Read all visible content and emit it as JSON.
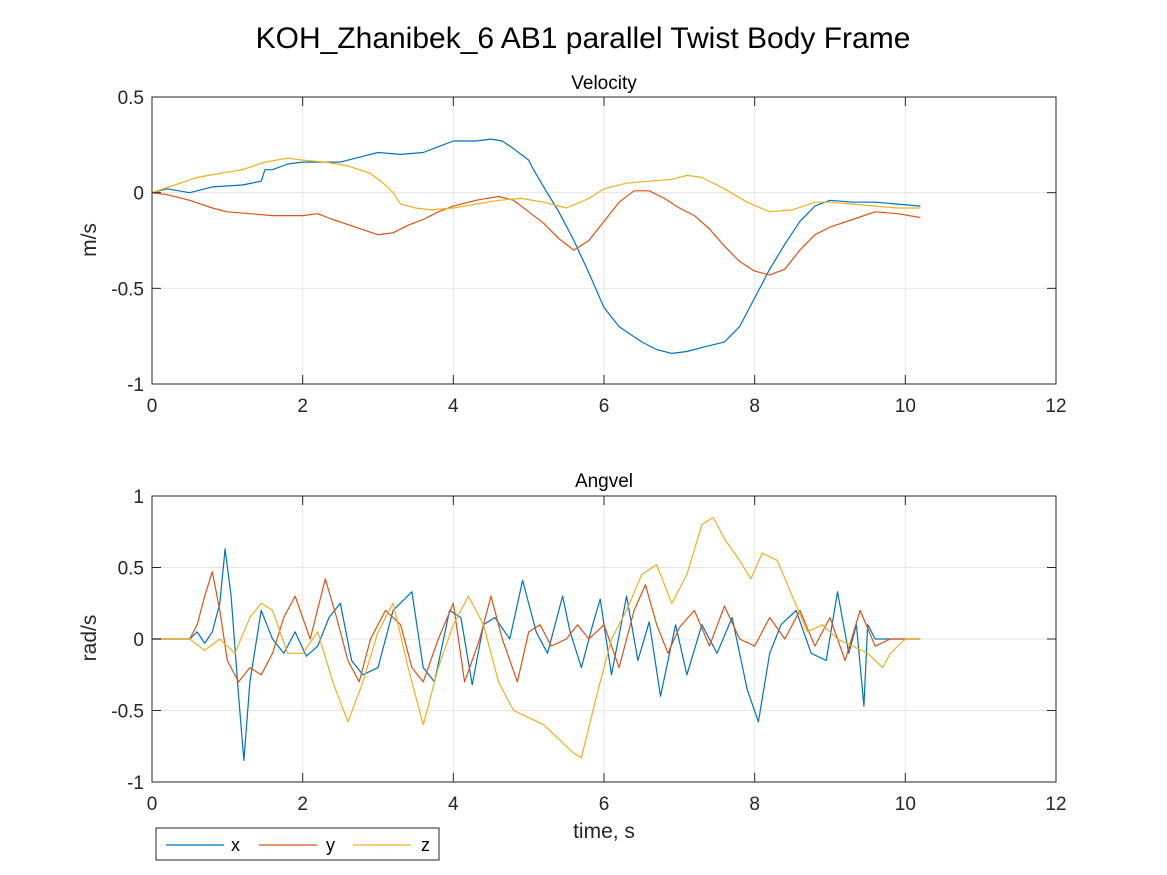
{
  "figure": {
    "title": "KOH_Zhanibek_6 AB1 parallel Twist Body Frame",
    "legend": {
      "placement": "bottom-left, outside axes",
      "entries": [
        "x",
        "y",
        "z"
      ]
    }
  },
  "colors": {
    "x": "#0072BD",
    "y": "#D95319",
    "z": "#EDB120",
    "grid": "#e6e6e6",
    "axis": "#262626"
  },
  "chart_data": [
    {
      "type": "line",
      "title": "Velocity",
      "xlabel": "",
      "ylabel": "m/s",
      "xlim": [
        0,
        12
      ],
      "ylim": [
        -1,
        0.5
      ],
      "xticks": [
        "0",
        "2",
        "4",
        "6",
        "8",
        "10",
        "12"
      ],
      "yticks": [
        "-1",
        "-0.5",
        "0",
        "0.5"
      ],
      "grid": true,
      "series": [
        {
          "name": "x",
          "color": "#0072BD",
          "x": [
            0,
            0.2,
            0.5,
            0.8,
            1.2,
            1.45,
            1.5,
            1.6,
            1.8,
            2.0,
            2.3,
            2.5,
            2.8,
            3.0,
            3.3,
            3.6,
            3.8,
            4.0,
            4.3,
            4.5,
            4.65,
            4.8,
            5.0,
            5.05,
            5.2,
            5.4,
            5.6,
            5.8,
            6.0,
            6.2,
            6.5,
            6.7,
            6.9,
            7.1,
            7.3,
            7.6,
            7.8,
            8.0,
            8.2,
            8.4,
            8.6,
            8.8,
            9.0,
            9.3,
            9.6,
            9.9,
            10.2
          ],
          "y": [
            0,
            0.02,
            0.0,
            0.03,
            0.04,
            0.06,
            0.12,
            0.12,
            0.15,
            0.16,
            0.16,
            0.16,
            0.19,
            0.21,
            0.2,
            0.21,
            0.24,
            0.27,
            0.27,
            0.28,
            0.27,
            0.23,
            0.17,
            0.13,
            0.03,
            -0.1,
            -0.25,
            -0.42,
            -0.6,
            -0.7,
            -0.78,
            -0.82,
            -0.84,
            -0.83,
            -0.81,
            -0.78,
            -0.7,
            -0.55,
            -0.4,
            -0.27,
            -0.15,
            -0.07,
            -0.04,
            -0.05,
            -0.05,
            -0.06,
            -0.07
          ]
        },
        {
          "name": "y",
          "color": "#D95319",
          "x": [
            0,
            0.2,
            0.5,
            0.8,
            1.0,
            1.3,
            1.6,
            2.0,
            2.2,
            2.4,
            2.7,
            3.0,
            3.2,
            3.4,
            3.6,
            3.8,
            4.0,
            4.3,
            4.6,
            4.8,
            5.0,
            5.2,
            5.4,
            5.6,
            5.8,
            6.0,
            6.2,
            6.4,
            6.6,
            6.8,
            7.0,
            7.2,
            7.4,
            7.6,
            7.8,
            8.0,
            8.2,
            8.4,
            8.6,
            8.8,
            9.0,
            9.3,
            9.6,
            9.9,
            10.2
          ],
          "y": [
            0,
            -0.01,
            -0.04,
            -0.08,
            -0.1,
            -0.11,
            -0.12,
            -0.12,
            -0.11,
            -0.14,
            -0.18,
            -0.22,
            -0.21,
            -0.17,
            -0.14,
            -0.1,
            -0.07,
            -0.04,
            -0.02,
            -0.04,
            -0.1,
            -0.16,
            -0.24,
            -0.3,
            -0.25,
            -0.15,
            -0.05,
            0.01,
            0.01,
            -0.03,
            -0.08,
            -0.12,
            -0.19,
            -0.28,
            -0.36,
            -0.41,
            -0.43,
            -0.4,
            -0.3,
            -0.22,
            -0.18,
            -0.14,
            -0.1,
            -0.11,
            -0.13
          ]
        },
        {
          "name": "z",
          "color": "#EDB120",
          "x": [
            0,
            0.3,
            0.6,
            0.9,
            1.2,
            1.5,
            1.8,
            2.0,
            2.3,
            2.6,
            2.9,
            3.1,
            3.2,
            3.3,
            3.5,
            3.7,
            4.0,
            4.3,
            4.6,
            4.9,
            5.2,
            5.5,
            5.8,
            6.0,
            6.3,
            6.6,
            6.9,
            7.1,
            7.3,
            7.6,
            7.9,
            8.2,
            8.5,
            8.8,
            9.0,
            9.3,
            9.6,
            9.9,
            10.2
          ],
          "y": [
            0,
            0.04,
            0.08,
            0.1,
            0.12,
            0.16,
            0.18,
            0.17,
            0.16,
            0.14,
            0.1,
            0.04,
            0.0,
            -0.06,
            -0.08,
            -0.09,
            -0.08,
            -0.06,
            -0.04,
            -0.03,
            -0.05,
            -0.08,
            -0.03,
            0.02,
            0.05,
            0.06,
            0.07,
            0.09,
            0.08,
            0.02,
            -0.05,
            -0.1,
            -0.09,
            -0.05,
            -0.05,
            -0.06,
            -0.07,
            -0.08,
            -0.08
          ]
        }
      ]
    },
    {
      "type": "line",
      "title": "Angvel",
      "xlabel": "time, s",
      "ylabel": "rad/s",
      "xlim": [
        0,
        12
      ],
      "ylim": [
        -1,
        1
      ],
      "xticks": [
        "0",
        "2",
        "4",
        "6",
        "8",
        "10",
        "12"
      ],
      "yticks": [
        "-1",
        "-0.5",
        "0",
        "0.5",
        "1"
      ],
      "grid": true,
      "series": [
        {
          "name": "x",
          "color": "#0072BD",
          "x": [
            0,
            0.5,
            0.6,
            0.7,
            0.8,
            0.9,
            0.97,
            1.05,
            1.15,
            1.22,
            1.3,
            1.45,
            1.6,
            1.75,
            1.9,
            2.05,
            2.2,
            2.35,
            2.5,
            2.65,
            2.8,
            3.0,
            3.2,
            3.45,
            3.6,
            3.75,
            3.95,
            4.1,
            4.25,
            4.4,
            4.55,
            4.75,
            4.92,
            5.1,
            5.25,
            5.45,
            5.55,
            5.7,
            5.85,
            5.95,
            6.1,
            6.3,
            6.45,
            6.6,
            6.75,
            6.95,
            7.1,
            7.3,
            7.5,
            7.7,
            7.9,
            8.05,
            8.2,
            8.35,
            8.55,
            8.75,
            8.95,
            9.1,
            9.25,
            9.35,
            9.45,
            9.5,
            9.6,
            9.8,
            10.2
          ],
          "y": [
            0,
            0.0,
            0.05,
            -0.03,
            0.05,
            0.25,
            0.63,
            0.3,
            -0.4,
            -0.85,
            -0.3,
            0.2,
            0.0,
            -0.1,
            0.05,
            -0.12,
            -0.05,
            0.15,
            0.25,
            -0.15,
            -0.25,
            -0.2,
            0.2,
            0.33,
            -0.2,
            -0.3,
            0.2,
            0.15,
            -0.32,
            0.1,
            0.15,
            0.0,
            0.41,
            0.05,
            -0.1,
            0.3,
            0.05,
            -0.2,
            0.1,
            0.28,
            -0.25,
            0.3,
            -0.15,
            0.12,
            -0.4,
            0.1,
            -0.25,
            0.1,
            -0.1,
            0.15,
            -0.35,
            -0.58,
            -0.1,
            0.1,
            0.2,
            -0.1,
            -0.15,
            0.33,
            -0.1,
            0.1,
            -0.47,
            0.1,
            0.0,
            0.0,
            0.0
          ]
        },
        {
          "name": "y",
          "color": "#D95319",
          "x": [
            0,
            0.5,
            0.6,
            0.7,
            0.8,
            0.9,
            1.0,
            1.15,
            1.3,
            1.45,
            1.6,
            1.75,
            1.9,
            2.1,
            2.3,
            2.45,
            2.6,
            2.75,
            2.9,
            3.1,
            3.3,
            3.45,
            3.6,
            3.8,
            4.0,
            4.15,
            4.35,
            4.5,
            4.65,
            4.85,
            5.0,
            5.15,
            5.3,
            5.5,
            5.65,
            5.8,
            6.0,
            6.2,
            6.4,
            6.55,
            6.7,
            6.85,
            7.0,
            7.2,
            7.4,
            7.6,
            7.8,
            8.0,
            8.2,
            8.4,
            8.6,
            8.8,
            9.0,
            9.2,
            9.4,
            9.6,
            9.8,
            10.2
          ],
          "y": [
            0,
            0.0,
            0.1,
            0.3,
            0.47,
            0.2,
            -0.15,
            -0.3,
            -0.2,
            -0.25,
            -0.1,
            0.15,
            0.3,
            0.0,
            0.42,
            0.15,
            -0.15,
            -0.3,
            0.0,
            0.2,
            0.1,
            -0.2,
            -0.3,
            0.0,
            0.25,
            -0.3,
            0.0,
            0.3,
            0.0,
            -0.3,
            0.05,
            0.1,
            -0.05,
            0.0,
            0.1,
            0.0,
            0.1,
            -0.2,
            0.2,
            0.38,
            0.1,
            -0.1,
            0.08,
            0.2,
            -0.05,
            0.23,
            0.0,
            -0.05,
            0.15,
            0.0,
            0.2,
            -0.05,
            0.15,
            -0.15,
            0.2,
            -0.05,
            0.0,
            0.0
          ]
        },
        {
          "name": "z",
          "color": "#EDB120",
          "x": [
            0,
            0.5,
            0.7,
            0.9,
            1.1,
            1.3,
            1.45,
            1.6,
            1.8,
            2.0,
            2.2,
            2.4,
            2.6,
            2.8,
            3.0,
            3.2,
            3.4,
            3.6,
            3.8,
            4.0,
            4.2,
            4.4,
            4.6,
            4.8,
            5.0,
            5.2,
            5.4,
            5.6,
            5.7,
            5.9,
            6.1,
            6.3,
            6.5,
            6.7,
            6.9,
            7.1,
            7.3,
            7.45,
            7.6,
            7.8,
            7.95,
            8.1,
            8.3,
            8.5,
            8.7,
            8.9,
            9.1,
            9.3,
            9.5,
            9.7,
            9.8,
            10.0,
            10.2
          ],
          "y": [
            0,
            0.0,
            -0.08,
            0.0,
            -0.1,
            0.15,
            0.25,
            0.2,
            -0.1,
            -0.1,
            0.05,
            -0.3,
            -0.58,
            -0.3,
            0.05,
            0.25,
            -0.2,
            -0.6,
            -0.2,
            0.1,
            0.3,
            0.1,
            -0.3,
            -0.5,
            -0.55,
            -0.6,
            -0.7,
            -0.8,
            -0.83,
            -0.4,
            0.0,
            0.2,
            0.45,
            0.52,
            0.25,
            0.45,
            0.8,
            0.85,
            0.7,
            0.55,
            0.42,
            0.6,
            0.55,
            0.3,
            0.05,
            0.1,
            0.0,
            -0.05,
            -0.1,
            -0.2,
            -0.1,
            0.0,
            0.0
          ]
        }
      ]
    }
  ]
}
